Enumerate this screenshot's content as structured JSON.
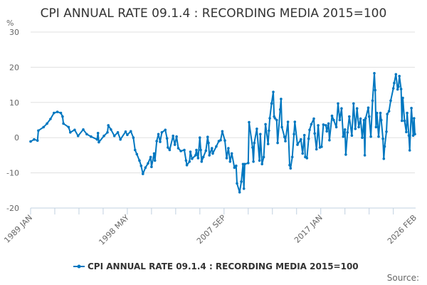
{
  "chart_data": {
    "type": "line",
    "title": "CPI ANNUAL RATE 09.1.4 : RECORDING MEDIA 2015=100",
    "ylabel": "%",
    "xlabel": "",
    "ylim": [
      -20,
      30
    ],
    "yticks": [
      "30",
      "20",
      "10",
      "0",
      "-10",
      "-20"
    ],
    "xlim": [
      "1989-01",
      "2026-02"
    ],
    "xticks": [
      {
        "date": "1989-01",
        "label": "1989 JAN"
      },
      {
        "date": "1998-05",
        "label": "1998 MAY"
      },
      {
        "date": "2007-09",
        "label": "2007 SEP"
      },
      {
        "date": "2017-01",
        "label": "2017 JAN"
      },
      {
        "date": "2026-02",
        "label": "2026 FEB"
      }
    ],
    "grid": true,
    "legend_position": "bottom",
    "color": "#0077c0",
    "series": [
      {
        "name": "CPI ANNUAL RATE 09.1.4 : RECORDING MEDIA 2015=100",
        "points": [
          [
            "1989-01",
            -1.1
          ],
          [
            "1989-05",
            -0.5
          ],
          [
            "1989-09",
            -0.8
          ],
          [
            "1989-10",
            2
          ],
          [
            "1990-04",
            3
          ],
          [
            "1990-08",
            4
          ],
          [
            "1990-12",
            5.3
          ],
          [
            "1991-04",
            7
          ],
          [
            "1991-08",
            7.3
          ],
          [
            "1991-12",
            7
          ],
          [
            "1992-02",
            6
          ],
          [
            "1992-03",
            4
          ],
          [
            "1992-09",
            3
          ],
          [
            "1992-11",
            1.5
          ],
          [
            "1993-04",
            2.2
          ],
          [
            "1993-08",
            0.5
          ],
          [
            "1994-02",
            2.3
          ],
          [
            "1994-06",
            1
          ],
          [
            "1994-11",
            0.3
          ],
          [
            "1995-06",
            -0.5
          ],
          [
            "1995-07",
            1.3
          ],
          [
            "1995-08",
            -1.3
          ],
          [
            "1996-02",
            0.5
          ],
          [
            "1996-06",
            1.5
          ],
          [
            "1996-07",
            3.5
          ],
          [
            "1996-10",
            2.3
          ],
          [
            "1997-02",
            0.5
          ],
          [
            "1997-06",
            1.5
          ],
          [
            "1997-09",
            -0.5
          ],
          [
            "1998-03",
            1.7
          ],
          [
            "1998-05",
            0.8
          ],
          [
            "1998-09",
            1.8
          ],
          [
            "1998-12",
            0
          ],
          [
            "1999-02",
            -3.5
          ],
          [
            "1999-04",
            -4.7
          ],
          [
            "1999-07",
            -6.5
          ],
          [
            "1999-09",
            -8
          ],
          [
            "1999-11",
            -10.3
          ],
          [
            "2000-02",
            -8.5
          ],
          [
            "2000-05",
            -7.3
          ],
          [
            "2000-08",
            -5.5
          ],
          [
            "2000-09",
            -8.3
          ],
          [
            "2000-12",
            -4.5
          ],
          [
            "2001-01",
            -6.5
          ],
          [
            "2001-03",
            -1
          ],
          [
            "2001-05",
            1
          ],
          [
            "2001-07",
            -1.2
          ],
          [
            "2001-09",
            1.5
          ],
          [
            "2002-01",
            2.2
          ],
          [
            "2002-03",
            -0.2
          ],
          [
            "2002-04",
            -2.8
          ],
          [
            "2002-06",
            -3.5
          ],
          [
            "2002-10",
            0.5
          ],
          [
            "2002-12",
            -2
          ],
          [
            "2003-02",
            0.3
          ],
          [
            "2003-04",
            -3
          ],
          [
            "2003-07",
            -3.8
          ],
          [
            "2003-11",
            -3.5
          ],
          [
            "2004-01",
            -6.5
          ],
          [
            "2004-02",
            -7.8
          ],
          [
            "2004-05",
            -6.8
          ],
          [
            "2004-06",
            -4
          ],
          [
            "2004-08",
            -6
          ],
          [
            "2004-12",
            -5
          ],
          [
            "2005-01",
            -3.5
          ],
          [
            "2005-03",
            -5.8
          ],
          [
            "2005-05",
            0
          ],
          [
            "2005-06",
            -3.5
          ],
          [
            "2005-07",
            -6.8
          ],
          [
            "2005-09",
            -5.5
          ],
          [
            "2005-12",
            -3.7
          ],
          [
            "2006-02",
            0.2
          ],
          [
            "2006-03",
            -1.5
          ],
          [
            "2006-04",
            -5
          ],
          [
            "2006-07",
            -3
          ],
          [
            "2006-08",
            -4.5
          ],
          [
            "2006-12",
            -2.5
          ],
          [
            "2007-03",
            -1
          ],
          [
            "2007-05",
            -0.7
          ],
          [
            "2007-07",
            1.8
          ],
          [
            "2007-10",
            -0.8
          ],
          [
            "2007-12",
            -5.8
          ],
          [
            "2008-02",
            -3
          ],
          [
            "2008-04",
            -6.8
          ],
          [
            "2008-06",
            -4.5
          ],
          [
            "2008-09",
            -8.5
          ],
          [
            "2008-11",
            -8
          ],
          [
            "2008-12",
            -13
          ],
          [
            "2009-03",
            -15.5
          ],
          [
            "2009-05",
            -12.5
          ],
          [
            "2009-07",
            -7.5
          ],
          [
            "2009-08",
            -14.5
          ],
          [
            "2009-09",
            -7.5
          ],
          [
            "2010-01",
            -7.2
          ],
          [
            "2010-02",
            4.4
          ],
          [
            "2010-06",
            -2.8
          ],
          [
            "2010-07",
            -6.8
          ],
          [
            "2010-08",
            -1.5
          ],
          [
            "2010-11",
            2.5
          ],
          [
            "2011-02",
            -6.5
          ],
          [
            "2011-03",
            1
          ],
          [
            "2011-05",
            -7.5
          ],
          [
            "2011-07",
            -5.5
          ],
          [
            "2011-09",
            3.8
          ],
          [
            "2011-12",
            -1.8
          ],
          [
            "2012-01",
            2
          ],
          [
            "2012-02",
            5.5
          ],
          [
            "2012-04",
            9.7
          ],
          [
            "2012-06",
            13
          ],
          [
            "2012-07",
            6
          ],
          [
            "2012-08",
            5.5
          ],
          [
            "2012-10",
            5
          ],
          [
            "2012-11",
            -1.5
          ],
          [
            "2013-02",
            8
          ],
          [
            "2013-03",
            11
          ],
          [
            "2013-04",
            3
          ],
          [
            "2013-07",
            0.2
          ],
          [
            "2013-08",
            -1
          ],
          [
            "2013-11",
            4.5
          ],
          [
            "2014-01",
            -7.8
          ],
          [
            "2014-02",
            -8.7
          ],
          [
            "2014-04",
            -5.5
          ],
          [
            "2014-06",
            1
          ],
          [
            "2014-07",
            4.5
          ],
          [
            "2014-10",
            -2
          ],
          [
            "2015-02",
            -0.5
          ],
          [
            "2015-04",
            -4.5
          ],
          [
            "2015-06",
            0.7
          ],
          [
            "2015-07",
            -5.5
          ],
          [
            "2015-09",
            -5.8
          ],
          [
            "2015-11",
            -0.3
          ],
          [
            "2015-12",
            2.2
          ],
          [
            "2016-02",
            3.8
          ],
          [
            "2016-05",
            5.4
          ],
          [
            "2016-06",
            1.2
          ],
          [
            "2016-08",
            -3.3
          ],
          [
            "2016-10",
            3.5
          ],
          [
            "2016-12",
            -2.8
          ],
          [
            "2017-02",
            -2.6
          ],
          [
            "2017-04",
            3.7
          ],
          [
            "2017-07",
            3.5
          ],
          [
            "2017-08",
            1.8
          ],
          [
            "2017-10",
            4
          ],
          [
            "2017-11",
            -0.7
          ],
          [
            "2018-02",
            6.2
          ],
          [
            "2018-04",
            5
          ],
          [
            "2018-07",
            3
          ],
          [
            "2018-09",
            9.7
          ],
          [
            "2018-11",
            5
          ],
          [
            "2019-01",
            8.3
          ],
          [
            "2019-03",
            0.3
          ],
          [
            "2019-05",
            2.3
          ],
          [
            "2019-06",
            -4.8
          ],
          [
            "2019-08",
            1.5
          ],
          [
            "2019-10",
            6
          ],
          [
            "2020-01",
            0.6
          ],
          [
            "2020-03",
            9.7
          ],
          [
            "2020-05",
            2.5
          ],
          [
            "2020-07",
            8.3
          ],
          [
            "2020-09",
            3
          ],
          [
            "2020-11",
            5.4
          ],
          [
            "2021-01",
            0
          ],
          [
            "2021-03",
            5
          ],
          [
            "2021-04",
            -5
          ],
          [
            "2021-05",
            5.5
          ],
          [
            "2021-08",
            8.5
          ],
          [
            "2021-09",
            6
          ],
          [
            "2021-11",
            0.3
          ],
          [
            "2022-01",
            10.5
          ],
          [
            "2022-03",
            18.3
          ],
          [
            "2022-04",
            13.5
          ],
          [
            "2022-05",
            3
          ],
          [
            "2022-06",
            7
          ],
          [
            "2022-08",
            0.3
          ],
          [
            "2022-10",
            7
          ],
          [
            "2022-11",
            5
          ],
          [
            "2023-01",
            -0.3
          ],
          [
            "2023-02",
            -6
          ],
          [
            "2023-03",
            -2.5
          ],
          [
            "2023-05",
            1.7
          ],
          [
            "2023-06",
            6.7
          ],
          [
            "2023-08",
            7.5
          ],
          [
            "2023-10",
            10.5
          ],
          [
            "2024-01",
            14
          ],
          [
            "2024-02",
            15.5
          ],
          [
            "2024-04",
            18
          ],
          [
            "2024-06",
            13.7
          ],
          [
            "2024-07",
            14.5
          ],
          [
            "2024-08",
            17.5
          ],
          [
            "2024-10",
            13.8
          ],
          [
            "2024-11",
            4.8
          ],
          [
            "2024-12",
            11.3
          ],
          [
            "2025-02",
            4.8
          ],
          [
            "2025-04",
            1.6
          ],
          [
            "2025-05",
            7
          ],
          [
            "2025-07",
            0.6
          ],
          [
            "2025-08",
            -3.6
          ],
          [
            "2025-10",
            8.4
          ],
          [
            "2025-12",
            0.6
          ],
          [
            "2026-01",
            5.5
          ],
          [
            "2026-02",
            1
          ]
        ]
      }
    ]
  },
  "footer": {
    "source_label": "Source:"
  }
}
